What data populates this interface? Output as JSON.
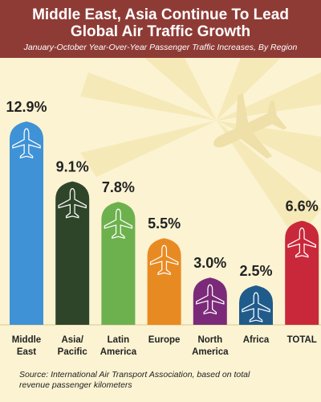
{
  "chart_data": {
    "type": "bar",
    "title": "Middle East, Asia Continue To Lead Global Air Traffic Growth",
    "subtitle": "January-October Year-Over-Year Passenger Traffic Increases, By Region",
    "categories": [
      "Middle East",
      "Asia/ Pacific",
      "Latin America",
      "Europe",
      "North America",
      "Africa",
      "TOTAL"
    ],
    "values": [
      12.9,
      9.1,
      7.8,
      5.5,
      3.0,
      2.5,
      6.6
    ],
    "value_labels": [
      "12.9%",
      "9.1%",
      "7.8%",
      "5.5%",
      "3.0%",
      "2.5%",
      "6.6%"
    ],
    "colors": [
      "#3f92d6",
      "#2f4529",
      "#6cb14d",
      "#e88a22",
      "#7b2a79",
      "#1f5b8b",
      "#c9283a"
    ],
    "source": "Source: International Air Transport Association, based on total revenue passenger kilometers"
  }
}
